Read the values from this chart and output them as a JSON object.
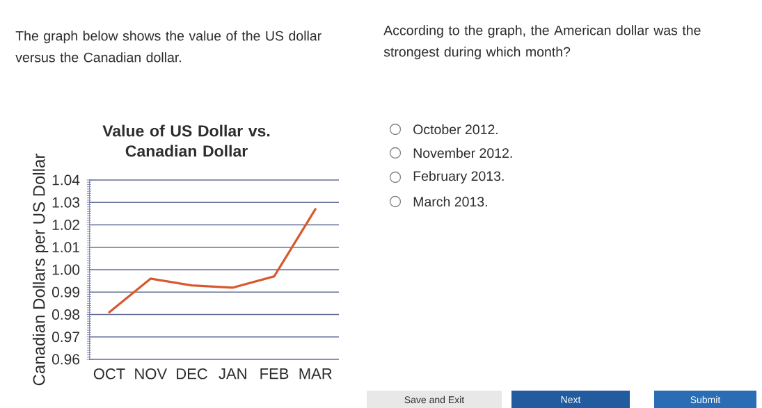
{
  "chart_data": {
    "type": "line",
    "title": "Value of US Dollar vs. Canadian Dollar",
    "ylabel": "Canadian Dollars per US Dollar",
    "categories": [
      "OCT",
      "NOV",
      "DEC",
      "JAN",
      "FEB",
      "MAR"
    ],
    "series": [
      {
        "color": "#d65a2e",
        "values": [
          0.981,
          0.996,
          0.993,
          0.992,
          0.997,
          1.027
        ]
      }
    ],
    "ylim": [
      0.96,
      1.04
    ],
    "yticks": [
      0.96,
      0.97,
      0.98,
      0.99,
      {
        "value": 1.0,
        "label": "1.00"
      },
      1.01,
      1.02,
      1.03,
      1.04
    ],
    "grid": "y",
    "annotations": [
      "The graph below shows the value of the US dollar versus the Canadian dollar.",
      "According to the graph, the American dollar was the strongest during which month?",
      "October 2012.",
      "November 2012.",
      "February 2013.",
      "March 2013.",
      "Save and Exit",
      "Next",
      "Submit"
    ]
  }
}
